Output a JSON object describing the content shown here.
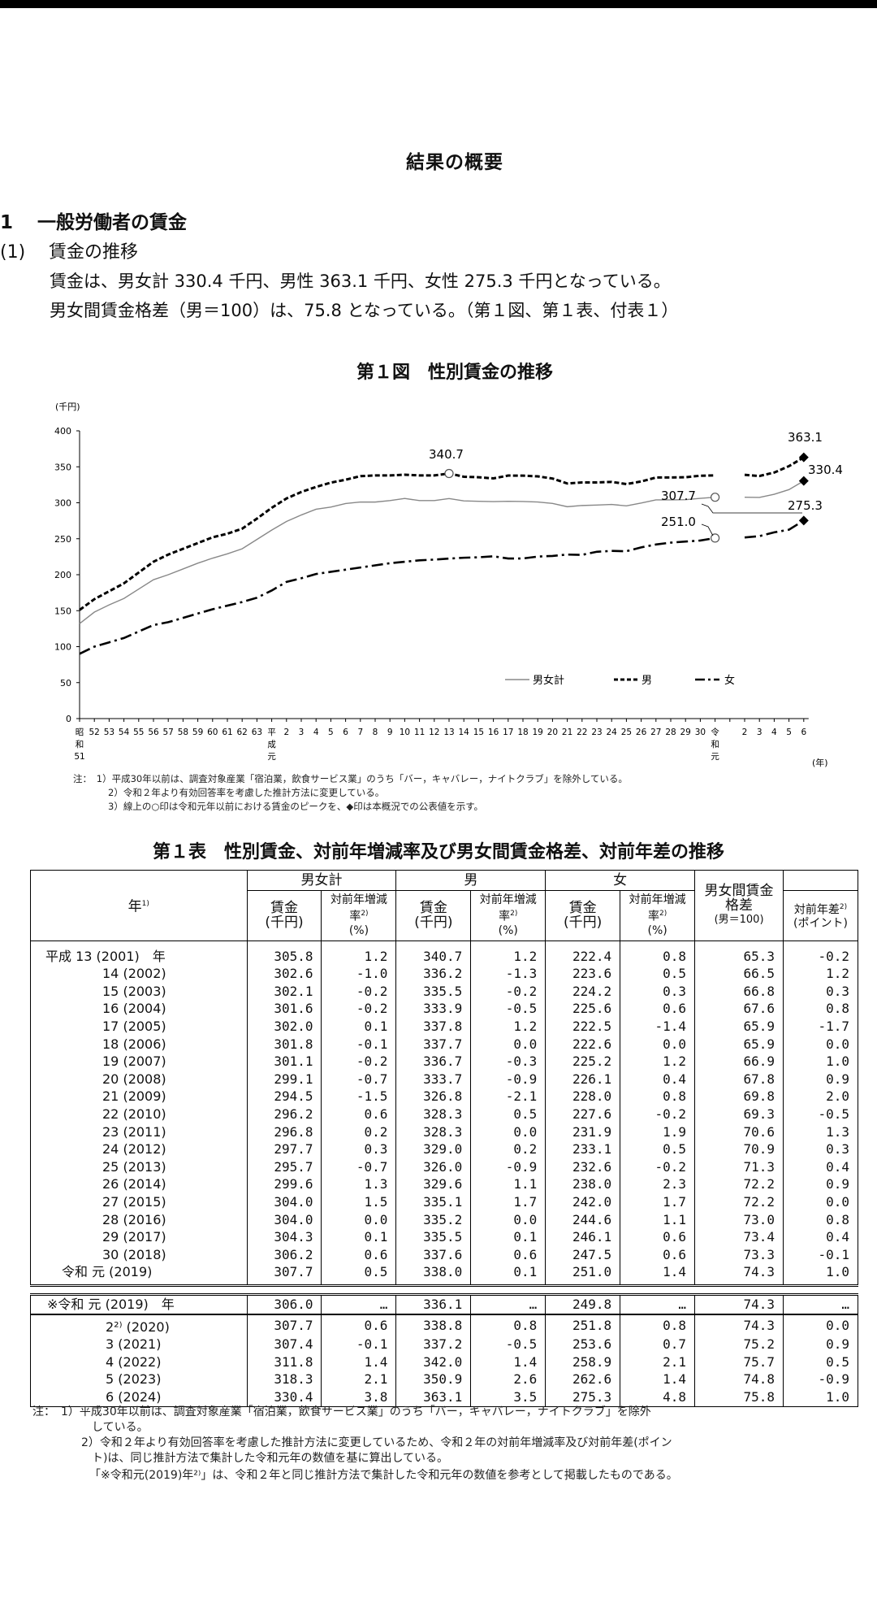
{
  "doc_title": "結果の概要",
  "section": {
    "num": "1",
    "title": "一般労働者の賃金"
  },
  "subsection": {
    "num": "(1)",
    "title": "賃金の推移"
  },
  "paragraphs": [
    "賃金は、男女計 330.4 千円、男性 363.1 千円、女性 275.3 千円となっている。",
    "男女間賃金格差（男＝100）は、75.8 となっている。（第１図、第１表、付表１）"
  ],
  "figure": {
    "title": "第１図　性別賃金の推移",
    "y_unit": "(千円)",
    "x_unit": "(年)",
    "legend": [
      "男女計",
      "男",
      "女"
    ],
    "annotations": {
      "peak_total": "307.7",
      "peak_male": "340.7",
      "peak_female": "251.0",
      "latest_male": "363.1",
      "latest_total": "330.4",
      "latest_female": "275.3"
    },
    "notes": [
      "注：　1）平成30年以前は、調査対象産業「宿泊業，飲食サービス業」のうち「バー，キャバレー，ナイトクラブ」を除外している。",
      "2）令和２年より有効回答率を考慮した推計方法に変更している。",
      "3）線上の○印は令和元年以前における賃金のピークを、◆印は本概況での公表値を示す。"
    ]
  },
  "chart_data": {
    "type": "line",
    "ylim": [
      0,
      400
    ],
    "yticks": [
      0,
      50,
      100,
      150,
      200,
      250,
      300,
      350,
      400
    ],
    "x_labels": [
      "昭和51",
      "52",
      "53",
      "54",
      "55",
      "56",
      "57",
      "58",
      "59",
      "60",
      "61",
      "62",
      "63",
      "平成元",
      "2",
      "3",
      "4",
      "5",
      "6",
      "7",
      "8",
      "9",
      "10",
      "11",
      "12",
      "13",
      "14",
      "15",
      "16",
      "17",
      "18",
      "19",
      "20",
      "21",
      "22",
      "23",
      "24",
      "25",
      "26",
      "27",
      "28",
      "29",
      "30",
      "令和元",
      "",
      "2",
      "3",
      "4",
      "5",
      "6"
    ],
    "series": [
      {
        "name": "男女計",
        "color": "#888888",
        "values": [
          132,
          148,
          158,
          167,
          180,
          193,
          200,
          208,
          216,
          223,
          229,
          236,
          249,
          262,
          274,
          283,
          291,
          294,
          299,
          301,
          301,
          303,
          306,
          303,
          303,
          305.8,
          302.6,
          302.1,
          301.6,
          302.0,
          301.8,
          301.1,
          299.1,
          294.5,
          296.2,
          296.8,
          297.7,
          295.7,
          299.6,
          304.0,
          304.0,
          304.3,
          306.2,
          307.7
        ],
        "values2": [
          307.7,
          307.4,
          311.8,
          318.3,
          330.4
        ]
      },
      {
        "name": "男",
        "color": "#000000",
        "values": [
          151,
          166,
          177,
          188,
          203,
          218,
          228,
          236,
          244,
          252,
          257,
          264,
          278,
          293,
          306,
          315,
          322,
          328,
          332,
          337,
          338,
          338,
          339,
          338,
          338,
          340.7,
          336.2,
          335.5,
          333.9,
          337.8,
          337.7,
          336.7,
          333.7,
          326.8,
          328.3,
          328.3,
          329.0,
          326.0,
          329.6,
          335.1,
          335.2,
          335.5,
          337.6,
          338.0
        ],
        "values2": [
          338.8,
          337.2,
          342.0,
          350.9,
          363.1
        ]
      },
      {
        "name": "女",
        "color": "#000000",
        "values": [
          90,
          100,
          106,
          112,
          121,
          130,
          134,
          140,
          146,
          152,
          157,
          162,
          168,
          178,
          190,
          195,
          201,
          204,
          207,
          210,
          213,
          216,
          218,
          220,
          221,
          222.4,
          223.6,
          224.2,
          225.6,
          222.5,
          222.6,
          225.2,
          226.1,
          228.0,
          227.6,
          231.9,
          233.1,
          232.6,
          238.0,
          242.0,
          244.6,
          246.1,
          247.5,
          251.0
        ],
        "values2": [
          251.8,
          253.6,
          258.9,
          262.6,
          275.3
        ]
      }
    ]
  },
  "table": {
    "title": "第１表　性別賃金、対前年増減率及び男女間賃金格差、対前年差の推移",
    "headers": {
      "year": "年",
      "year_sup": "1)",
      "total": "男女計",
      "male": "男",
      "female": "女",
      "wage": "賃金",
      "wage_unit": "(千円)",
      "rate": "対前年増減率",
      "rate_sup": "2)",
      "rate_unit": "(%)",
      "gap": "男女間賃金格差",
      "gap_unit": "(男＝100)",
      "gap_diff": "対前年差",
      "gap_diff_sup": "2)",
      "gap_diff_unit": "(ポイント)"
    },
    "rows": [
      [
        "平成 13 (2001)　年",
        "305.8",
        "1.2",
        "340.7",
        "1.2",
        "222.4",
        "0.8",
        "65.3",
        "-0.2"
      ],
      [
        "14 (2002)",
        "302.6",
        "-1.0",
        "336.2",
        "-1.3",
        "223.6",
        "0.5",
        "66.5",
        "1.2"
      ],
      [
        "15 (2003)",
        "302.1",
        "-0.2",
        "335.5",
        "-0.2",
        "224.2",
        "0.3",
        "66.8",
        "0.3"
      ],
      [
        "16 (2004)",
        "301.6",
        "-0.2",
        "333.9",
        "-0.5",
        "225.6",
        "0.6",
        "67.6",
        "0.8"
      ],
      [
        "17 (2005)",
        "302.0",
        "0.1",
        "337.8",
        "1.2",
        "222.5",
        "-1.4",
        "65.9",
        "-1.7"
      ],
      [
        "18 (2006)",
        "301.8",
        "-0.1",
        "337.7",
        "0.0",
        "222.6",
        "0.0",
        "65.9",
        "0.0"
      ],
      [
        "19 (2007)",
        "301.1",
        "-0.2",
        "336.7",
        "-0.3",
        "225.2",
        "1.2",
        "66.9",
        "1.0"
      ],
      [
        "20 (2008)",
        "299.1",
        "-0.7",
        "333.7",
        "-0.9",
        "226.1",
        "0.4",
        "67.8",
        "0.9"
      ],
      [
        "21 (2009)",
        "294.5",
        "-1.5",
        "326.8",
        "-2.1",
        "228.0",
        "0.8",
        "69.8",
        "2.0"
      ],
      [
        "22 (2010)",
        "296.2",
        "0.6",
        "328.3",
        "0.5",
        "227.6",
        "-0.2",
        "69.3",
        "-0.5"
      ],
      [
        "23 (2011)",
        "296.8",
        "0.2",
        "328.3",
        "0.0",
        "231.9",
        "1.9",
        "70.6",
        "1.3"
      ],
      [
        "24 (2012)",
        "297.7",
        "0.3",
        "329.0",
        "0.2",
        "233.1",
        "0.5",
        "70.9",
        "0.3"
      ],
      [
        "25 (2013)",
        "295.7",
        "-0.7",
        "326.0",
        "-0.9",
        "232.6",
        "-0.2",
        "71.3",
        "0.4"
      ],
      [
        "26 (2014)",
        "299.6",
        "1.3",
        "329.6",
        "1.1",
        "238.0",
        "2.3",
        "72.2",
        "0.9"
      ],
      [
        "27 (2015)",
        "304.0",
        "1.5",
        "335.1",
        "1.7",
        "242.0",
        "1.7",
        "72.2",
        "0.0"
      ],
      [
        "28 (2016)",
        "304.0",
        "0.0",
        "335.2",
        "0.0",
        "244.6",
        "1.1",
        "73.0",
        "0.8"
      ],
      [
        "29 (2017)",
        "304.3",
        "0.1",
        "335.5",
        "0.1",
        "246.1",
        "0.6",
        "73.4",
        "0.4"
      ],
      [
        "30 (2018)",
        "306.2",
        "0.6",
        "337.6",
        "0.6",
        "247.5",
        "0.6",
        "73.3",
        "-0.1"
      ],
      [
        "令和 元 (2019)",
        "307.7",
        "0.5",
        "338.0",
        "0.1",
        "251.0",
        "1.4",
        "74.3",
        "1.0"
      ]
    ],
    "star_row": [
      "※令和 元 (2019)　年",
      "306.0",
      "…",
      "336.1",
      "…",
      "249.8",
      "…",
      "74.3",
      "…"
    ],
    "star_sup": "2)",
    "rows2": [
      [
        "2²⁾ (2020)",
        "307.7",
        "0.6",
        "338.8",
        "0.8",
        "251.8",
        "0.8",
        "74.3",
        "0.0"
      ],
      [
        "3 (2021)",
        "307.4",
        "-0.1",
        "337.2",
        "-0.5",
        "253.6",
        "0.7",
        "75.2",
        "0.9"
      ],
      [
        "4 (2022)",
        "311.8",
        "1.4",
        "342.0",
        "1.4",
        "258.9",
        "2.1",
        "75.7",
        "0.5"
      ],
      [
        "5 (2023)",
        "318.3",
        "2.1",
        "350.9",
        "2.6",
        "262.6",
        "1.4",
        "74.8",
        "-0.9"
      ],
      [
        "6 (2024)",
        "330.4",
        "3.8",
        "363.1",
        "3.5",
        "275.3",
        "4.8",
        "75.8",
        "1.0"
      ]
    ],
    "notes": [
      "注：　1）平成30年以前は、調査対象産業「宿泊業，飲食サービス業」のうち「バー，キャバレー，ナイトクラブ」を除外",
      "している。",
      "2）令和２年より有効回答率を考慮した推計方法に変更しているため、令和２年の対前年増減率及び対前年差(ポイン",
      "ト)は、同じ推計方法で集計した令和元年の数値を基に算出している。",
      "「※令和元(2019)年²⁾」は、令和２年と同じ推計方法で集計した令和元年の数値を参考として掲載したものである。"
    ]
  }
}
